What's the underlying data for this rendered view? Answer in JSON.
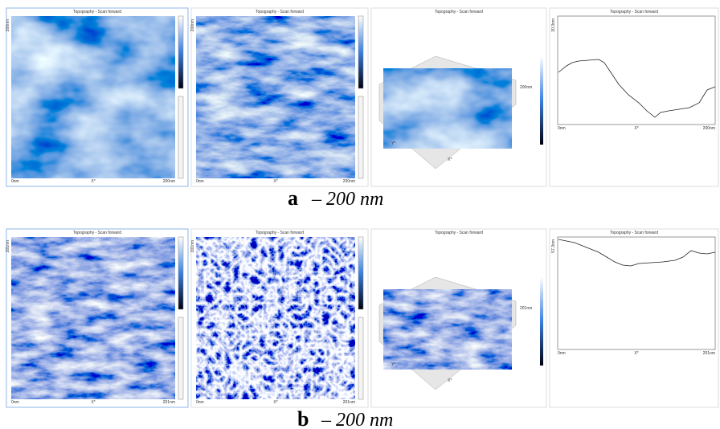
{
  "figure": {
    "rows": [
      {
        "label": "a",
        "caption": "–  200 nm",
        "panels": [
          {
            "title": "Topography - Scan forward",
            "x_start": "0nm",
            "x_mid": "X*",
            "x_end": "200nm",
            "y_top": "200nm"
          },
          {
            "title": "Topography - Scan forward",
            "x_start": "0nm",
            "x_mid": "X*",
            "x_end": "200nm",
            "y_top": "200nm"
          },
          {
            "title": "Topography - Scan forward",
            "x_start": "Y*",
            "x_mid": "X*",
            "x_end": "200nm",
            "y_top": "200nm"
          },
          {
            "title": "Topography - Scan forward",
            "x_start": "0nm",
            "x_mid": "X*",
            "x_end": "200nm",
            "y_top": "30.3nm"
          }
        ]
      },
      {
        "label": "b",
        "caption": "– 200 nm",
        "panels": [
          {
            "title": "Topography - Scan forward",
            "x_start": "0nm",
            "x_mid": "X*",
            "x_end": "201nm",
            "y_top": "201nm"
          },
          {
            "title": "Topography - Scan forward",
            "x_start": "0nm",
            "x_mid": "X*",
            "x_end": "201nm",
            "y_top": "201nm"
          },
          {
            "title": "Topography - Scan forward",
            "x_start": "Y*",
            "x_mid": "X*",
            "x_end": "201nm",
            "y_top": "201nm"
          },
          {
            "title": "Topography - Scan forward",
            "x_start": "0nm",
            "x_mid": "X*",
            "x_end": "201nm",
            "y_top": "57.3nm"
          }
        ]
      }
    ]
  }
}
